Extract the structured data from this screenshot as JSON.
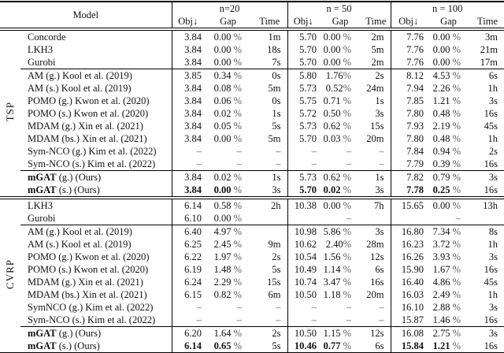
{
  "colors": {
    "text": "#111111",
    "muted_unit": "#5a5a5a",
    "rule": "#000000",
    "background": "#ffffff"
  },
  "table": {
    "model_header": "Model",
    "groups": [
      {
        "label": "n=20",
        "columns": [
          "Obj↓",
          "Gap",
          "Time"
        ]
      },
      {
        "label": "n = 50",
        "columns": [
          "Obj↓",
          "Gap",
          "Time"
        ]
      },
      {
        "label": "n = 100",
        "columns": [
          "Obj↓",
          "Gap",
          "Time"
        ]
      }
    ],
    "sections": [
      {
        "label": "TSP",
        "blocks": [
          [
            {
              "prefix": "",
              "name": "Concorde",
              "emph": false,
              "cells": [
                [
                  "3.84",
                  "0.00",
                  " %",
                  "1m"
                ],
                [
                  "5.70",
                  "0.00",
                  " %",
                  "2m"
                ],
                [
                  "7.76",
                  "0.00",
                  " %",
                  "3m"
                ]
              ]
            },
            {
              "prefix": "",
              "name": "LKH3",
              "emph": false,
              "cells": [
                [
                  "3.84",
                  "0.00",
                  " %",
                  "18s"
                ],
                [
                  "5.70",
                  "0.00",
                  " %",
                  "5m"
                ],
                [
                  "7.76",
                  "0.00",
                  " %",
                  "21m"
                ]
              ]
            },
            {
              "prefix": "",
              "name": "Gurobi",
              "emph": false,
              "cells": [
                [
                  "3.84",
                  "0.00",
                  " %",
                  "7s"
                ],
                [
                  "5.70",
                  "0.00",
                  " %",
                  "2m"
                ],
                [
                  "7.76",
                  "0.00",
                  " %",
                  "17m"
                ]
              ]
            }
          ],
          [
            {
              "prefix": "",
              "name": "AM (g.) Kool et al. (2019)",
              "emph": false,
              "cells": [
                [
                  "3.85",
                  "0.34",
                  " %",
                  "0s"
                ],
                [
                  "5.80",
                  "1.76",
                  "%",
                  "2s"
                ],
                [
                  "8.12",
                  "4.53",
                  " %",
                  "6s"
                ]
              ]
            },
            {
              "prefix": "",
              "name": "AM (s.) Kool et al. (2019)",
              "emph": false,
              "cells": [
                [
                  "3.84",
                  "0.08",
                  " %",
                  "5m"
                ],
                [
                  "5.73",
                  "0.52",
                  "%",
                  "24m"
                ],
                [
                  "7.94",
                  "2.26",
                  " %",
                  "1h"
                ]
              ]
            },
            {
              "prefix": "",
              "name": "POMO (g.) Kwon et al. (2020)",
              "emph": false,
              "cells": [
                [
                  "3.84",
                  "0.06",
                  " %",
                  "0s"
                ],
                [
                  "5.75",
                  "0.71",
                  " %",
                  "1s"
                ],
                [
                  "7.85",
                  "1.21",
                  " %",
                  "3s"
                ]
              ]
            },
            {
              "prefix": "",
              "name": "POMO (s.) Kwon et al. (2020)",
              "emph": false,
              "cells": [
                [
                  "3.84",
                  "0.02",
                  " %",
                  "1s"
                ],
                [
                  "5.72",
                  "0.50",
                  " %",
                  "3s"
                ],
                [
                  "7.80",
                  "0.48",
                  " %",
                  "16s"
                ]
              ]
            },
            {
              "prefix": "",
              "name": "MDAM (g.) Xin et al. (2021)",
              "emph": false,
              "cells": [
                [
                  "3.84",
                  "0.05",
                  " %",
                  "5s"
                ],
                [
                  "5.73",
                  "0.62",
                  " %",
                  "15s"
                ],
                [
                  "7.93",
                  "2.19",
                  " %",
                  "45s"
                ]
              ]
            },
            {
              "prefix": "",
              "name": "MDAM (bs.) Xin et al. (2021)",
              "emph": false,
              "cells": [
                [
                  "3.84",
                  "0.00",
                  " %",
                  "5m"
                ],
                [
                  "5.70",
                  "0.03",
                  " %",
                  "20m"
                ],
                [
                  "7.80",
                  "0.48",
                  " %",
                  "1h"
                ]
              ]
            },
            {
              "prefix": "",
              "name": "Sym-NCO (g.) Kim et al. (2022)",
              "emph": false,
              "cells": [
                [
                  "–",
                  "–",
                  "",
                  "–"
                ],
                [
                  "–",
                  "–",
                  "",
                  "–"
                ],
                [
                  "7.84",
                  "0.94",
                  " %",
                  "2s"
                ]
              ]
            },
            {
              "prefix": "",
              "name": "Sym-NCO (s.) Kim et al. (2022)",
              "emph": false,
              "cells": [
                [
                  "–",
                  "–",
                  "",
                  "–"
                ],
                [
                  "–",
                  "–",
                  "",
                  "–"
                ],
                [
                  "7.79",
                  "0.39",
                  " %",
                  "16s"
                ]
              ]
            }
          ],
          [
            {
              "prefix": "mGAT",
              "name": " (g.) (Ours)",
              "emph": false,
              "cells": [
                [
                  "3.84",
                  "0.02",
                  " %",
                  "1s"
                ],
                [
                  "5.73",
                  "0.62",
                  " %",
                  "1s"
                ],
                [
                  "7.82",
                  "0.79",
                  " %",
                  "3s"
                ]
              ]
            },
            {
              "prefix": "mGAT",
              "name": " (s.) (Ours)",
              "emph": true,
              "cells": [
                [
                  "3.84",
                  "0.00",
                  " %",
                  "3s"
                ],
                [
                  "5.70",
                  "0.02",
                  " %",
                  "3s"
                ],
                [
                  "7.78",
                  "0.25",
                  " %",
                  "16s"
                ]
              ]
            }
          ]
        ]
      },
      {
        "label": "CVRP",
        "blocks": [
          [
            {
              "prefix": "",
              "name": "LKH3",
              "emph": false,
              "cells": [
                [
                  "6.14",
                  "0.58",
                  " %",
                  "2h"
                ],
                [
                  "10.38",
                  "0.00",
                  " %",
                  "7h"
                ],
                [
                  "15.65",
                  "0.00",
                  " %",
                  "13h"
                ]
              ]
            },
            {
              "prefix": "",
              "name": "Gurobi",
              "emph": false,
              "cells": [
                [
                  "6.10",
                  "0.00",
                  " %",
                  ""
                ],
                [
                  "",
                  "–",
                  "",
                  ""
                ],
                [
                  "",
                  "–",
                  "",
                  ""
                ]
              ]
            }
          ],
          [
            {
              "prefix": "",
              "name": "AM (g.) Kool et al. (2019)",
              "emph": false,
              "cells": [
                [
                  "6.40",
                  "4.97",
                  " %",
                  ""
                ],
                [
                  "10.98",
                  "5.86",
                  " %",
                  "3s"
                ],
                [
                  "16.80",
                  "7.34",
                  " %",
                  "8s"
                ]
              ]
            },
            {
              "prefix": "",
              "name": "AM (s.) Kool et al. (2019)",
              "emph": false,
              "cells": [
                [
                  "6.25",
                  "2.45",
                  " %",
                  "9m"
                ],
                [
                  "10.62",
                  "2.40",
                  "%",
                  "28m"
                ],
                [
                  "16.23",
                  "3.72",
                  " %",
                  "1h"
                ]
              ]
            },
            {
              "prefix": "",
              "name": "POMO (g.) Kwon et al. (2020)",
              "emph": false,
              "cells": [
                [
                  "6.22",
                  "1.97",
                  " %",
                  "2s"
                ],
                [
                  "10.54",
                  "1.56",
                  " %",
                  "12s"
                ],
                [
                  "16.26",
                  "3.93",
                  " %",
                  "3s"
                ]
              ]
            },
            {
              "prefix": "",
              "name": "POMO (s.) Kwon et al. (2020)",
              "emph": false,
              "cells": [
                [
                  "6.19",
                  "1.48",
                  " %",
                  "5s"
                ],
                [
                  "10.49",
                  "1.14",
                  " %",
                  "6s"
                ],
                [
                  "15.90",
                  "1.67",
                  " %",
                  "16s"
                ]
              ]
            },
            {
              "prefix": "",
              "name": "MDAM (g.) Xin et al. (2021)",
              "emph": false,
              "cells": [
                [
                  "6.24",
                  "2.29",
                  " %",
                  "15s"
                ],
                [
                  "10.74",
                  "3.47",
                  " %",
                  "16s"
                ],
                [
                  "16.40",
                  "4.86",
                  " %",
                  "45s"
                ]
              ]
            },
            {
              "prefix": "",
              "name": "MDAM (bs.) Xin et al. (2021)",
              "emph": false,
              "cells": [
                [
                  "6.15",
                  "0.82",
                  " %",
                  "6m"
                ],
                [
                  "10.50",
                  "1.18",
                  " %",
                  "20m"
                ],
                [
                  "16.03",
                  "2.49",
                  " %",
                  "1h"
                ]
              ]
            },
            {
              "prefix": "",
              "name": "SymNCO (g.) Kim et al. (2022)",
              "emph": false,
              "cells": [
                [
                  "–",
                  "–",
                  "",
                  "–"
                ],
                [
                  "–",
                  "–",
                  "",
                  "–"
                ],
                [
                  "16.10",
                  "2.88",
                  " %",
                  "3s"
                ]
              ]
            },
            {
              "prefix": "",
              "name": "Sym-NCO (s.) Kim et al. (2022)",
              "emph": false,
              "cells": [
                [
                  "–",
                  "–",
                  "",
                  "–"
                ],
                [
                  "–",
                  "–",
                  "",
                  "–"
                ],
                [
                  "15.87",
                  "1.46",
                  " %",
                  "16s"
                ]
              ]
            }
          ],
          [
            {
              "prefix": "mGAT",
              "name": " (g.) (Ours)",
              "emph": false,
              "cells": [
                [
                  "6.20",
                  "1.64",
                  " %",
                  "2s"
                ],
                [
                  "10.50",
                  "1.15",
                  " %",
                  "12s"
                ],
                [
                  "16.08",
                  "2.75",
                  " %",
                  "3s"
                ]
              ]
            },
            {
              "prefix": "mGAT",
              "name": " (s.) (Ours)",
              "emph": true,
              "cells": [
                [
                  "6.14",
                  "0.65",
                  " %",
                  "5s"
                ],
                [
                  "10.46",
                  "0.77",
                  " %",
                  "6s"
                ],
                [
                  "15.84",
                  "1.21",
                  " %",
                  "16s"
                ]
              ]
            }
          ]
        ]
      }
    ]
  }
}
